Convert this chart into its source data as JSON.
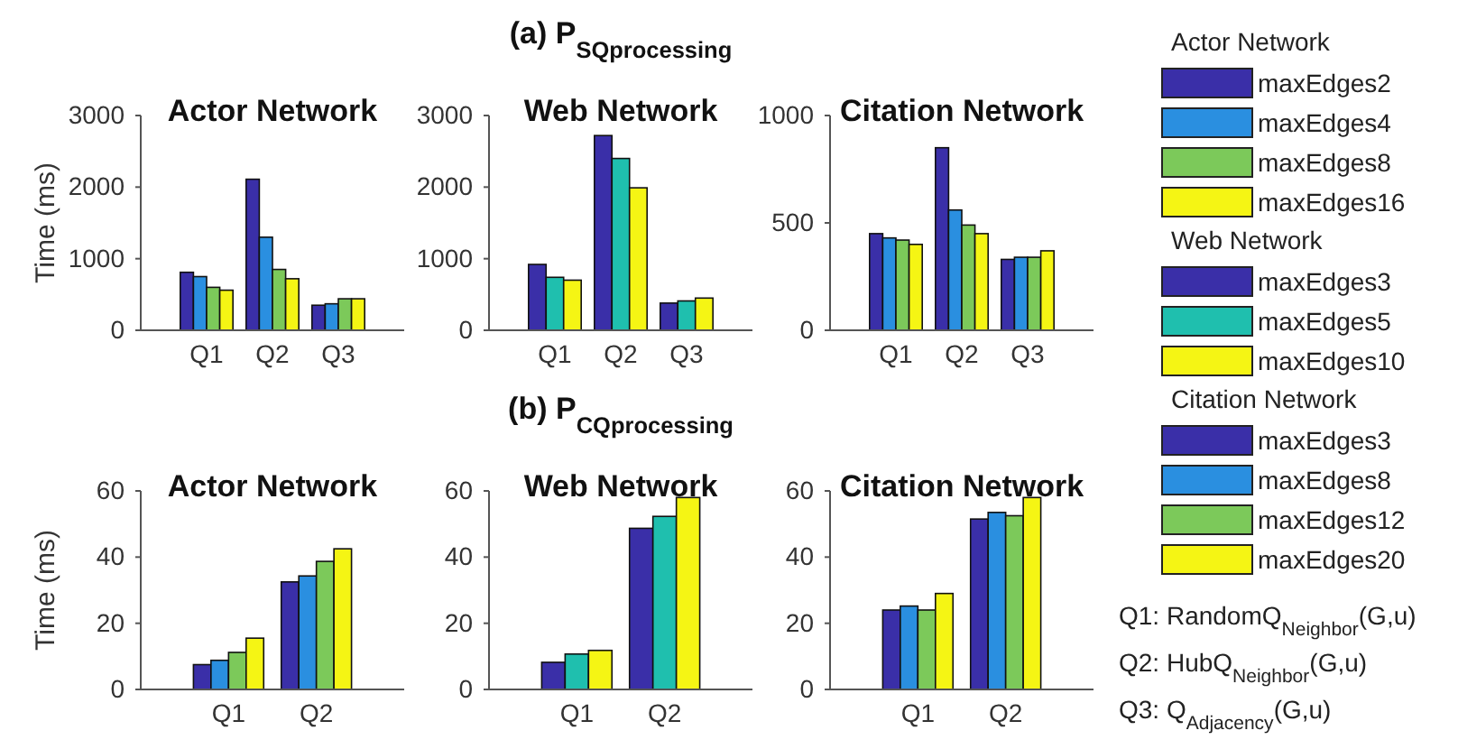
{
  "chart_data": [
    {
      "type": "bar",
      "title": "Actor Network",
      "ylabel": "Time (ms)",
      "categories": [
        "Q1",
        "Q2",
        "Q3"
      ],
      "ylim": [
        0,
        3000
      ],
      "yticks": [
        0,
        1000,
        2000,
        3000
      ],
      "legend": "right",
      "legend_title": "Actor Network",
      "series": [
        {
          "name": "maxEdges2",
          "color": "#3a2fa8",
          "values": [
            810,
            2110,
            350
          ]
        },
        {
          "name": "maxEdges4",
          "color": "#2a8fe0",
          "values": [
            750,
            1300,
            370
          ]
        },
        {
          "name": "maxEdges8",
          "color": "#7cc95a",
          "values": [
            600,
            850,
            440
          ]
        },
        {
          "name": "maxEdges16",
          "color": "#f5f514",
          "values": [
            560,
            720,
            440
          ]
        }
      ]
    },
    {
      "type": "bar",
      "title": "Web Network",
      "subtitle": "(a) P$_{SQprocessing}$",
      "categories": [
        "Q1",
        "Q2",
        "Q3"
      ],
      "ylim": [
        0,
        3000
      ],
      "yticks": [
        0,
        1000,
        2000,
        3000
      ],
      "legend": "right",
      "legend_title": "Web Network",
      "series": [
        {
          "name": "maxEdges3",
          "color": "#3a2fa8",
          "values": [
            920,
            2720,
            380
          ]
        },
        {
          "name": "maxEdges5",
          "color": "#1fbfae",
          "values": [
            740,
            2400,
            410
          ]
        },
        {
          "name": "maxEdges10",
          "color": "#f5f514",
          "values": [
            700,
            1990,
            450
          ]
        }
      ]
    },
    {
      "type": "bar",
      "title": "Citation Network",
      "categories": [
        "Q1",
        "Q2",
        "Q3"
      ],
      "ylim": [
        0,
        1000
      ],
      "yticks": [
        0,
        500,
        1000
      ],
      "legend": "right",
      "legend_title": "Citation Network",
      "annotations": [
        "Q1: RandomQ$_{Neighbor}$(G,u)",
        "Q2: HubQ$_{Neighbor}$(G,u)",
        "Q3: Q$_{Adjacency}$(G,u)"
      ],
      "series": [
        {
          "name": "maxEdges3",
          "color": "#3a2fa8",
          "values": [
            450,
            850,
            330
          ]
        },
        {
          "name": "maxEdges8",
          "color": "#2a8fe0",
          "values": [
            430,
            560,
            340
          ]
        },
        {
          "name": "maxEdges12",
          "color": "#7cc95a",
          "values": [
            420,
            490,
            340
          ]
        },
        {
          "name": "maxEdges20",
          "color": "#f5f514",
          "values": [
            400,
            450,
            370
          ]
        }
      ]
    },
    {
      "type": "bar",
      "title": "Actor Network",
      "ylabel": "Time (ms)",
      "categories": [
        "Q1",
        "Q2"
      ],
      "ylim": [
        0,
        60
      ],
      "yticks": [
        0,
        20,
        40,
        60
      ],
      "series": [
        {
          "color": "#3a2fa8",
          "values": [
            7.5,
            32.5
          ]
        },
        {
          "color": "#2a8fe0",
          "values": [
            8.8,
            34.3
          ]
        },
        {
          "color": "#7cc95a",
          "values": [
            11.2,
            38.7
          ]
        },
        {
          "color": "#f5f514",
          "values": [
            15.5,
            42.5
          ]
        }
      ]
    },
    {
      "type": "bar",
      "title": "Web Network",
      "subtitle": "(b) P$_{CQprocessing}$",
      "categories": [
        "Q1",
        "Q2"
      ],
      "ylim": [
        0,
        60
      ],
      "yticks": [
        0,
        20,
        40,
        60
      ],
      "series": [
        {
          "color": "#3a2fa8",
          "values": [
            8.2,
            48.7
          ]
        },
        {
          "color": "#1fbfae",
          "values": [
            10.7,
            52.3
          ]
        },
        {
          "color": "#f5f514",
          "values": [
            11.8,
            58
          ]
        }
      ]
    },
    {
      "type": "bar",
      "title": "Citation Network",
      "categories": [
        "Q1",
        "Q2"
      ],
      "ylim": [
        0,
        60
      ],
      "yticks": [
        0,
        20,
        40,
        60
      ],
      "series": [
        {
          "color": "#3a2fa8",
          "values": [
            24,
            51.5
          ]
        },
        {
          "color": "#2a8fe0",
          "values": [
            25.2,
            53.5
          ]
        },
        {
          "color": "#7cc95a",
          "values": [
            24,
            52.5
          ]
        },
        {
          "color": "#f5f514",
          "values": [
            29,
            58
          ]
        }
      ]
    }
  ]
}
